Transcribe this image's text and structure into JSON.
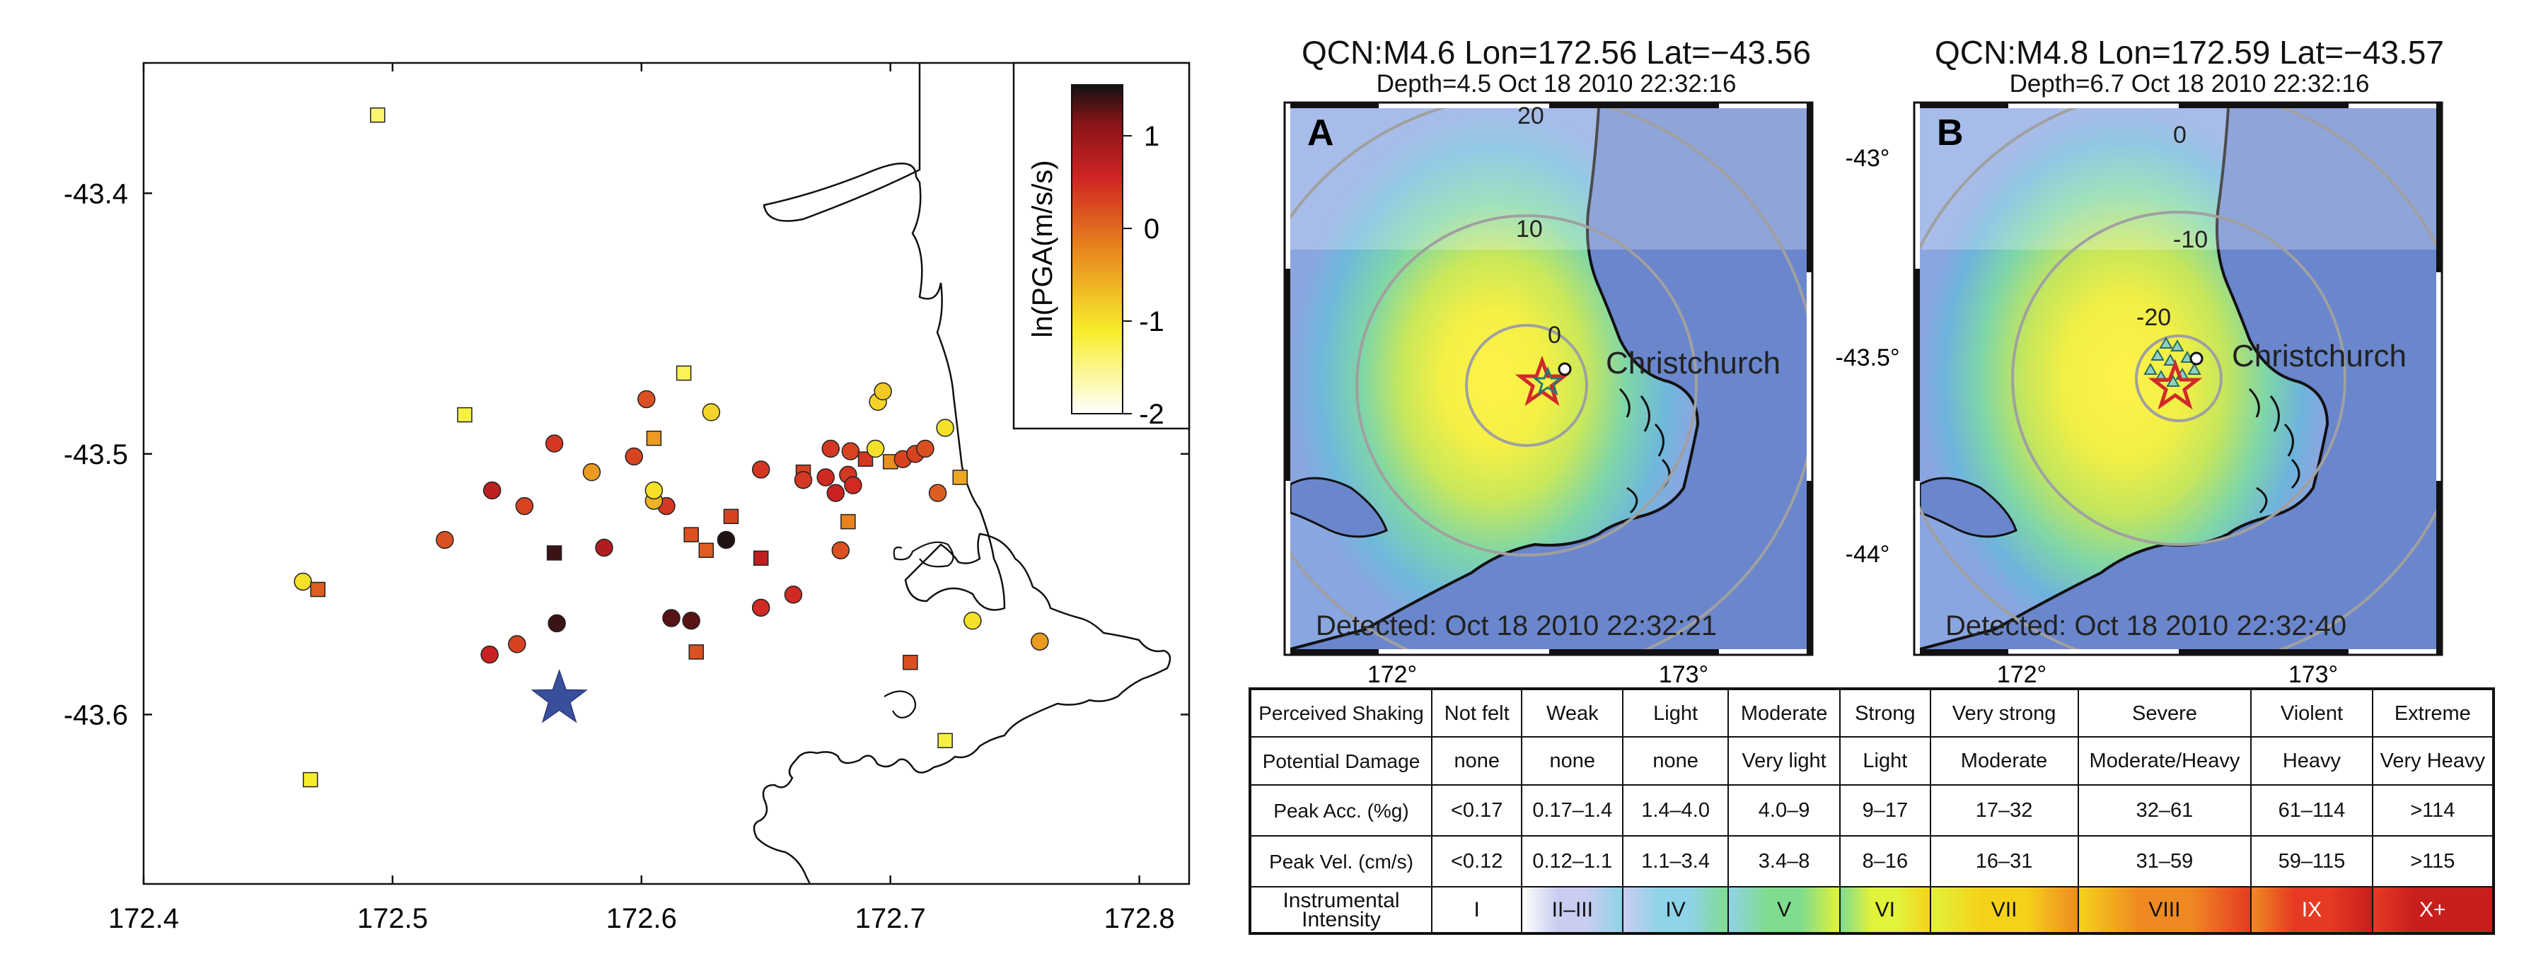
{
  "left_map": {
    "x_ticks": [
      "172.4",
      "172.5",
      "172.6",
      "172.7",
      "172.8"
    ],
    "x_range": [
      172.4,
      172.82
    ],
    "y_ticks": [
      "-43.4",
      "-43.5",
      "-43.6"
    ],
    "y_range": [
      -43.665,
      -43.35
    ],
    "colorbar": {
      "label": "ln(PGA(m/s/s)",
      "ticks": [
        "1",
        "0",
        "-1",
        "-2"
      ],
      "range": [
        -2,
        1.55
      ]
    },
    "epicenter": {
      "lon": 172.567,
      "lat": -43.594,
      "color": "#3a4f9c",
      "icon": "star-icon"
    },
    "stations": [
      {
        "lon": 172.494,
        "lat": -43.37,
        "v": -1.4,
        "m": "s"
      },
      {
        "lon": 172.464,
        "lat": -43.549,
        "v": -1.0,
        "m": "c"
      },
      {
        "lon": 172.47,
        "lat": -43.552,
        "v": 0.1,
        "m": "s"
      },
      {
        "lon": 172.467,
        "lat": -43.625,
        "v": -1.1,
        "m": "s"
      },
      {
        "lon": 172.529,
        "lat": -43.485,
        "v": -1.2,
        "m": "s"
      },
      {
        "lon": 172.521,
        "lat": -43.533,
        "v": 0.2,
        "m": "c"
      },
      {
        "lon": 172.54,
        "lat": -43.514,
        "v": 0.7,
        "m": "c"
      },
      {
        "lon": 172.553,
        "lat": -43.52,
        "v": 0.3,
        "m": "c"
      },
      {
        "lon": 172.539,
        "lat": -43.577,
        "v": 0.6,
        "m": "c"
      },
      {
        "lon": 172.55,
        "lat": -43.573,
        "v": 0.3,
        "m": "c"
      },
      {
        "lon": 172.565,
        "lat": -43.496,
        "v": 0.4,
        "m": "c"
      },
      {
        "lon": 172.565,
        "lat": -43.538,
        "v": 1.4,
        "m": "s"
      },
      {
        "lon": 172.566,
        "lat": -43.565,
        "v": 1.4,
        "m": "c"
      },
      {
        "lon": 172.585,
        "lat": -43.536,
        "v": 0.8,
        "m": "c"
      },
      {
        "lon": 172.58,
        "lat": -43.507,
        "v": -0.4,
        "m": "c"
      },
      {
        "lon": 172.597,
        "lat": -43.501,
        "v": 0.3,
        "m": "c"
      },
      {
        "lon": 172.602,
        "lat": -43.479,
        "v": 0.2,
        "m": "c"
      },
      {
        "lon": 172.605,
        "lat": -43.494,
        "v": -0.4,
        "m": "s"
      },
      {
        "lon": 172.61,
        "lat": -43.52,
        "v": 0.4,
        "m": "c"
      },
      {
        "lon": 172.605,
        "lat": -43.518,
        "v": -0.6,
        "m": "c"
      },
      {
        "lon": 172.605,
        "lat": -43.514,
        "v": -1.0,
        "m": "c"
      },
      {
        "lon": 172.617,
        "lat": -43.469,
        "v": -1.3,
        "m": "s"
      },
      {
        "lon": 172.628,
        "lat": -43.484,
        "v": -0.9,
        "m": "c"
      },
      {
        "lon": 172.62,
        "lat": -43.531,
        "v": 0.2,
        "m": "s"
      },
      {
        "lon": 172.626,
        "lat": -43.537,
        "v": 0.1,
        "m": "s"
      },
      {
        "lon": 172.636,
        "lat": -43.524,
        "v": 0.3,
        "m": "s"
      },
      {
        "lon": 172.634,
        "lat": -43.533,
        "v": 1.5,
        "m": "c"
      },
      {
        "lon": 172.612,
        "lat": -43.563,
        "v": 1.3,
        "m": "c"
      },
      {
        "lon": 172.62,
        "lat": -43.564,
        "v": 1.3,
        "m": "c"
      },
      {
        "lon": 172.622,
        "lat": -43.576,
        "v": 0.2,
        "m": "s"
      },
      {
        "lon": 172.648,
        "lat": -43.506,
        "v": 0.4,
        "m": "c"
      },
      {
        "lon": 172.648,
        "lat": -43.54,
        "v": 0.7,
        "m": "s"
      },
      {
        "lon": 172.648,
        "lat": -43.559,
        "v": 0.5,
        "m": "c"
      },
      {
        "lon": 172.661,
        "lat": -43.554,
        "v": 0.5,
        "m": "c"
      },
      {
        "lon": 172.665,
        "lat": -43.507,
        "v": 0.3,
        "m": "s"
      },
      {
        "lon": 172.665,
        "lat": -43.51,
        "v": 0.4,
        "m": "c"
      },
      {
        "lon": 172.674,
        "lat": -43.509,
        "v": 0.5,
        "m": "c"
      },
      {
        "lon": 172.676,
        "lat": -43.498,
        "v": 0.4,
        "m": "c"
      },
      {
        "lon": 172.678,
        "lat": -43.515,
        "v": 0.6,
        "m": "c"
      },
      {
        "lon": 172.683,
        "lat": -43.508,
        "v": 0.4,
        "m": "c"
      },
      {
        "lon": 172.685,
        "lat": -43.512,
        "v": 0.5,
        "m": "c"
      },
      {
        "lon": 172.684,
        "lat": -43.499,
        "v": 0.3,
        "m": "c"
      },
      {
        "lon": 172.68,
        "lat": -43.537,
        "v": 0.2,
        "m": "c"
      },
      {
        "lon": 172.683,
        "lat": -43.526,
        "v": -0.2,
        "m": "s"
      },
      {
        "lon": 172.69,
        "lat": -43.502,
        "v": 0.4,
        "m": "s"
      },
      {
        "lon": 172.694,
        "lat": -43.498,
        "v": -1.0,
        "m": "c"
      },
      {
        "lon": 172.695,
        "lat": -43.48,
        "v": -0.9,
        "m": "c"
      },
      {
        "lon": 172.697,
        "lat": -43.476,
        "v": -0.8,
        "m": "c"
      },
      {
        "lon": 172.7,
        "lat": -43.503,
        "v": -0.3,
        "m": "s"
      },
      {
        "lon": 172.705,
        "lat": -43.502,
        "v": 0.3,
        "m": "c"
      },
      {
        "lon": 172.71,
        "lat": -43.5,
        "v": 0.3,
        "m": "c"
      },
      {
        "lon": 172.714,
        "lat": -43.498,
        "v": 0.2,
        "m": "c"
      },
      {
        "lon": 172.722,
        "lat": -43.49,
        "v": -1.0,
        "m": "c"
      },
      {
        "lon": 172.719,
        "lat": -43.515,
        "v": 0.1,
        "m": "c"
      },
      {
        "lon": 172.728,
        "lat": -43.509,
        "v": -0.5,
        "m": "s"
      },
      {
        "lon": 172.708,
        "lat": -43.58,
        "v": 0.2,
        "m": "s"
      },
      {
        "lon": 172.733,
        "lat": -43.564,
        "v": -1.0,
        "m": "c"
      },
      {
        "lon": 172.76,
        "lat": -43.572,
        "v": -0.4,
        "m": "c"
      },
      {
        "lon": 172.722,
        "lat": -43.61,
        "v": -1.2,
        "m": "s"
      }
    ]
  },
  "maps": [
    {
      "id": "A",
      "title": "QCN:M4.6 Lon=172.56 Lat=−43.56",
      "subtitle": "Depth=4.5 Oct 18 2010 22:32:16",
      "panel_label": "A",
      "city": "Christchurch",
      "detected": "Detected: Oct 18 2010 22:32:21",
      "contours": [
        "20",
        "10",
        "0"
      ],
      "x_ticks": [
        "172°",
        "173°"
      ]
    },
    {
      "id": "B",
      "title": "QCN:M4.8 Lon=172.59 Lat=−43.57",
      "subtitle": "Depth=6.7 Oct 18 2010 22:32:16",
      "panel_label": "B",
      "city": "Christchurch",
      "detected": "Detected: Oct 18 2010 22:32:40",
      "contours": [
        "0",
        "-10",
        "-20"
      ],
      "x_ticks": [
        "172°",
        "173°"
      ]
    }
  ],
  "lat_ticks": [
    "-43°",
    "-43.5°",
    "-44°"
  ],
  "mmi_table": {
    "row_headers": [
      "Perceived Shaking",
      "Potential Damage",
      "Peak Acc. (%g)",
      "Peak Vel. (cm/s)",
      "Instrumental Intensity"
    ],
    "shaking": [
      "Not felt",
      "Weak",
      "Light",
      "Moderate",
      "Strong",
      "Very strong",
      "Severe",
      "Violent",
      "Extreme"
    ],
    "damage": [
      "none",
      "none",
      "none",
      "Very light",
      "Light",
      "Moderate",
      "Moderate/Heavy",
      "Heavy",
      "Very Heavy"
    ],
    "acc": [
      "<0.17",
      "0.17–1.4",
      "1.4–4.0",
      "4.0–9",
      "9–17",
      "17–32",
      "32–61",
      "61–114",
      ">114"
    ],
    "vel": [
      "<0.12",
      "0.12–1.1",
      "1.1–3.4",
      "3.4–8",
      "8–16",
      "16–31",
      "31–59",
      "59–115",
      ">115"
    ],
    "intensity": [
      "I",
      "II–III",
      "IV",
      "V",
      "VI",
      "VII",
      "VIII",
      "IX",
      "X+"
    ],
    "intensity_colors": [
      "#ffffff",
      "#c9cdf0",
      "#8fd3e8",
      "#7fdc8e",
      "#e3f23a",
      "#f5d21a",
      "#ef8a22",
      "#e63a22",
      "#c81e1e"
    ]
  }
}
